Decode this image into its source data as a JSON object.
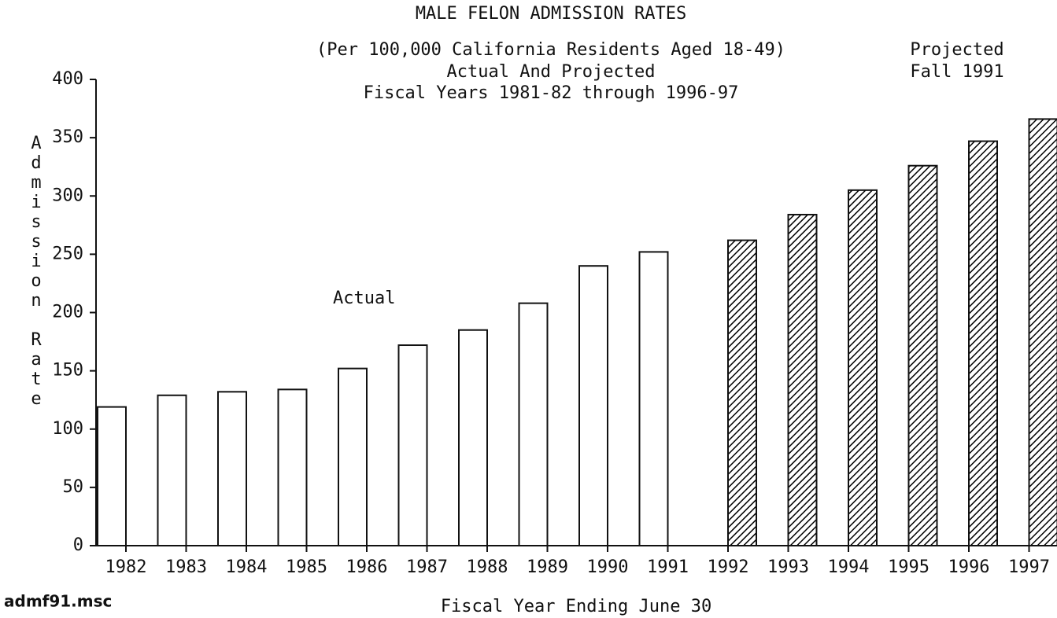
{
  "chart_data": {
    "type": "bar",
    "title": "MALE FELON ADMISSION RATES",
    "subtitle": [
      "(Per 100,000 California Residents Aged 18-49)",
      "Actual And Projected",
      "Fiscal Years 1981-82 through 1996-97"
    ],
    "annotation": "Fall 1991",
    "footer": "admf91.msc",
    "xlabel": "Fiscal Year Ending June 30",
    "ylabel": "Admission Rate",
    "categories": [
      "1982",
      "1983",
      "1984",
      "1985",
      "1986",
      "1987",
      "1988",
      "1989",
      "1990",
      "1991",
      "1992",
      "1993",
      "1994",
      "1995",
      "1996",
      "1997"
    ],
    "series": [
      {
        "name": "Actual",
        "color": "#ffffff",
        "hatch": false,
        "values": [
          119,
          129,
          132,
          134,
          152,
          172,
          185,
          208,
          240,
          252,
          null,
          null,
          null,
          null,
          null,
          null
        ]
      },
      {
        "name": "Projected",
        "color": "#000000",
        "hatch": true,
        "values": [
          null,
          null,
          null,
          null,
          null,
          null,
          null,
          null,
          null,
          null,
          262,
          284,
          305,
          326,
          347,
          366
        ]
      }
    ],
    "ylim": [
      0,
      400
    ],
    "yticks": [
      0,
      50,
      100,
      150,
      200,
      250,
      300,
      350,
      400
    ]
  }
}
